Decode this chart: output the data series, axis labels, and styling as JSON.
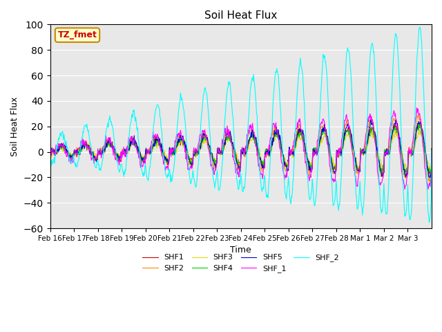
{
  "title": "Soil Heat Flux",
  "xlabel": "Time",
  "ylabel": "Soil Heat Flux",
  "ylim": [
    -60,
    100
  ],
  "annotation_text": "TZ_fmet",
  "annotation_bg": "#ffffcc",
  "annotation_border": "#cc8800",
  "annotation_text_color": "#cc0000",
  "bg_color": "#e8e8e8",
  "xtick_labels": [
    "Feb 16",
    "Feb 17",
    "Feb 18",
    "Feb 19",
    "Feb 20",
    "Feb 21",
    "Feb 22",
    "Feb 23",
    "Feb 24",
    "Feb 25",
    "Feb 26",
    "Feb 27",
    "Feb 28",
    "Mar 1",
    "Mar 2",
    "Mar 3"
  ],
  "series_colors": {
    "SHF1": "#cc0000",
    "SHF2": "#ff8800",
    "SHF3": "#dddd00",
    "SHF4": "#00cc00",
    "SHF5": "#0000cc",
    "SHF_1": "#ff00ff",
    "SHF_2": "#00ffff"
  }
}
